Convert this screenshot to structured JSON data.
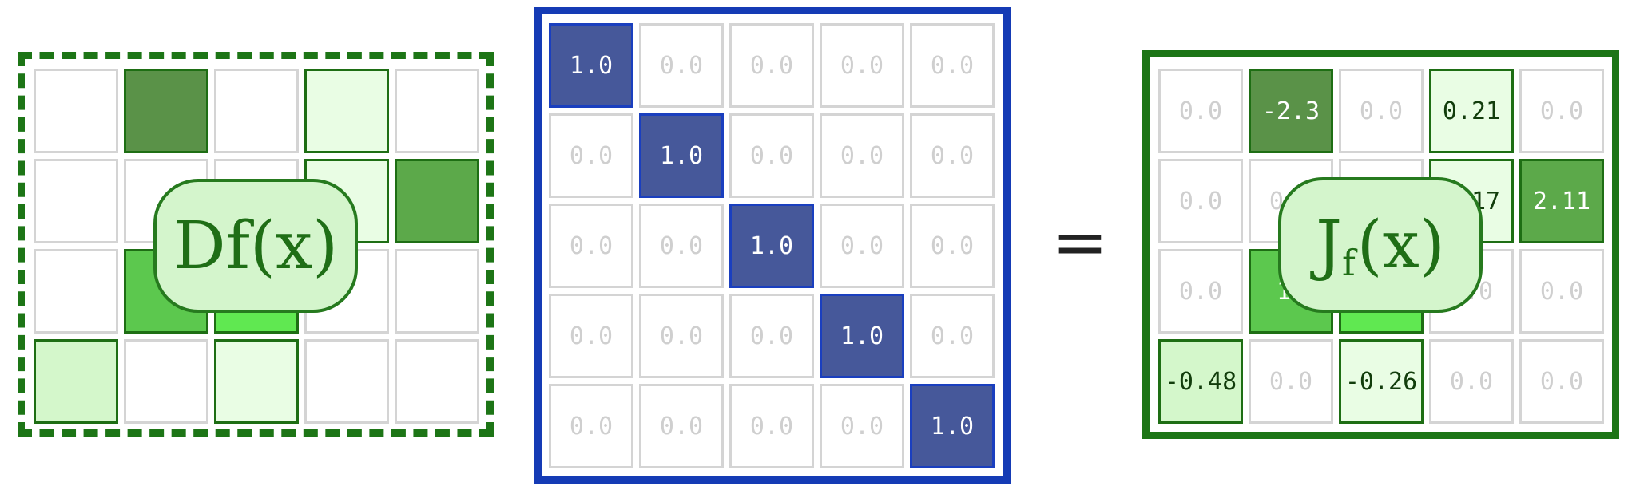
{
  "colors": {
    "background": "#ffffff",
    "empty_border": "#d4d4d4",
    "zero_text": "#cfcfcf",
    "green_border": "#1e6e14",
    "green_frame": "#1d7516",
    "blue_fill": "#46589a",
    "blue_border": "#1a3fbf",
    "blue_frame": "#153bb5",
    "label_fill": "#d4f5cc"
  },
  "operator_symbol": "=",
  "derivative_matrix": {
    "label": {
      "text": "Df(x)",
      "sub": ""
    },
    "cells": [
      [
        "",
        "#5a9248",
        "",
        "#e9fde4",
        ""
      ],
      [
        "",
        "",
        "",
        "#e9fde4",
        "#5ca94a"
      ],
      [
        "",
        "#5cc84e",
        "#60e851",
        "",
        ""
      ],
      [
        "#d4f7cb",
        "",
        "#e9fde4",
        "",
        ""
      ]
    ]
  },
  "identity_matrix": {
    "values": [
      [
        "1.0",
        "0.0",
        "0.0",
        "0.0",
        "0.0"
      ],
      [
        "0.0",
        "1.0",
        "0.0",
        "0.0",
        "0.0"
      ],
      [
        "0.0",
        "0.0",
        "1.0",
        "0.0",
        "0.0"
      ],
      [
        "0.0",
        "0.0",
        "0.0",
        "1.0",
        "0.0"
      ],
      [
        "0.0",
        "0.0",
        "0.0",
        "0.0",
        "1.0"
      ]
    ]
  },
  "jacobian_matrix": {
    "label": {
      "text": "J",
      "sub": "f",
      "suffix": "(x)"
    },
    "cells": [
      [
        {
          "v": "0.0",
          "c": ""
        },
        {
          "v": "-2.3",
          "c": "#5a9248"
        },
        {
          "v": "0.0",
          "c": ""
        },
        {
          "v": "0.21",
          "c": "#e9fde4"
        },
        {
          "v": "0.0",
          "c": ""
        }
      ],
      [
        {
          "v": "0.0",
          "c": ""
        },
        {
          "v": "0.0",
          "c": ""
        },
        {
          "v": "",
          "c": ""
        },
        {
          "v": "0.17",
          "c": "#e9fde4"
        },
        {
          "v": "2.11",
          "c": "#5ca94a"
        }
      ],
      [
        {
          "v": "0.0",
          "c": ""
        },
        {
          "v": "1.",
          "c": "#5cc84e"
        },
        {
          "v": "",
          "c": "#60e851"
        },
        {
          "v": "0.0",
          "c": ""
        },
        {
          "v": "0.0",
          "c": ""
        }
      ],
      [
        {
          "v": "-0.48",
          "c": "#d4f7cb"
        },
        {
          "v": "0.0",
          "c": ""
        },
        {
          "v": "-0.26",
          "c": "#e9fde4"
        },
        {
          "v": "0.0",
          "c": ""
        },
        {
          "v": "0.0",
          "c": ""
        }
      ]
    ]
  }
}
